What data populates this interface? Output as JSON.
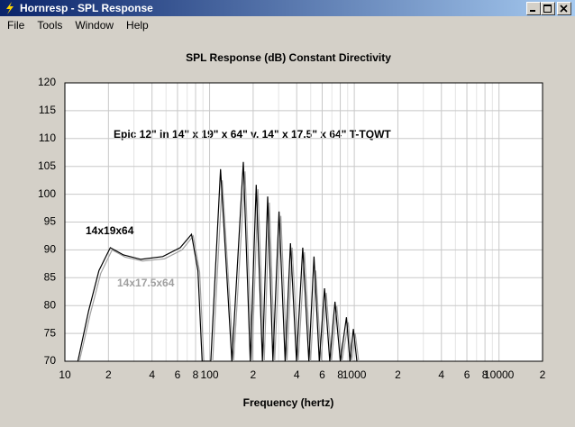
{
  "window": {
    "title": "Hornresp - SPL Response",
    "menu": [
      "File",
      "Tools",
      "Window",
      "Help"
    ]
  },
  "chart_data": {
    "type": "line",
    "title": "SPL Response (dB)   Constant Directivity",
    "xlabel": "Frequency (hertz)",
    "annotation": "Epic 12\" in 14\" x 19\" x 64\"  v. 14\" x 17.5\" x 64\" T-TQWT",
    "log_x": true,
    "grid": true,
    "xlim": [
      10,
      20000
    ],
    "ylim": [
      70,
      120
    ],
    "xticks": [
      10,
      {
        "value": 20,
        "label": "2"
      },
      {
        "value": 40,
        "label": "4"
      },
      {
        "value": 60,
        "label": "6"
      },
      {
        "value": 80,
        "label": "8"
      },
      100,
      {
        "value": 200,
        "label": "2"
      },
      {
        "value": 400,
        "label": "4"
      },
      {
        "value": 600,
        "label": "6"
      },
      {
        "value": 800,
        "label": "8"
      },
      1000,
      {
        "value": 2000,
        "label": "2"
      },
      {
        "value": 4000,
        "label": "4"
      },
      {
        "value": 6000,
        "label": "6"
      },
      {
        "value": 8000,
        "label": "8"
      },
      10000,
      {
        "value": 20000,
        "label": "2"
      }
    ],
    "xminorticks": [
      30,
      50,
      70,
      90,
      300,
      500,
      700,
      900,
      3000,
      5000,
      7000,
      9000
    ],
    "yticks": [
      70,
      75,
      80,
      85,
      90,
      95,
      100,
      105,
      110,
      115,
      120
    ],
    "series": [
      {
        "name": "14x19x64",
        "color": "#000000",
        "x": [
          12.3,
          14.6,
          17.2,
          20.6,
          25.4,
          33.5,
          47.5,
          62.7,
          75,
          83,
          88.8,
          102,
          119,
          142.6,
          171,
          191,
          210,
          232,
          252,
          274,
          302,
          333,
          362,
          399,
          440,
          485,
          527,
          573,
          623,
          677,
          736,
          800,
          883,
          933,
          986,
          1043
        ],
        "values": [
          70,
          79.1,
          86.3,
          90.4,
          89.1,
          88.3,
          88.8,
          90.4,
          92.8,
          86.3,
          70,
          70,
          104.5,
          70,
          105.8,
          70,
          101.7,
          70,
          99.6,
          70,
          96.9,
          70,
          91.2,
          70,
          90.4,
          70,
          88.8,
          70,
          83.1,
          70,
          80.7,
          70,
          77.9,
          70,
          75.8,
          70
        ]
      },
      {
        "name": "14x17.5x64",
        "color": "#a0a0a0",
        "x": [
          12.6,
          15,
          17.7,
          21.2,
          26.1,
          34.4,
          48.8,
          64.5,
          77.1,
          85.3,
          91.3,
          105,
          122.3,
          146.6,
          175.8,
          196.3,
          215.9,
          238.5,
          259,
          281.7,
          310.5,
          342.3,
          372.1,
          410.2,
          452.3,
          498.6,
          541.8,
          589,
          640.4,
          696,
          756.6,
          822.4,
          907.7,
          959.1,
          1013.6,
          1072
        ],
        "values": [
          70,
          78.6,
          85.8,
          90,
          88.7,
          88,
          88.4,
          90,
          92.5,
          86,
          70,
          70,
          102.5,
          70,
          104.1,
          70,
          100.9,
          70,
          98.5,
          70,
          96.1,
          70,
          90.4,
          70,
          89.6,
          70,
          86.3,
          70,
          82.3,
          70,
          79.9,
          70,
          77,
          70,
          75,
          70
        ]
      }
    ]
  }
}
